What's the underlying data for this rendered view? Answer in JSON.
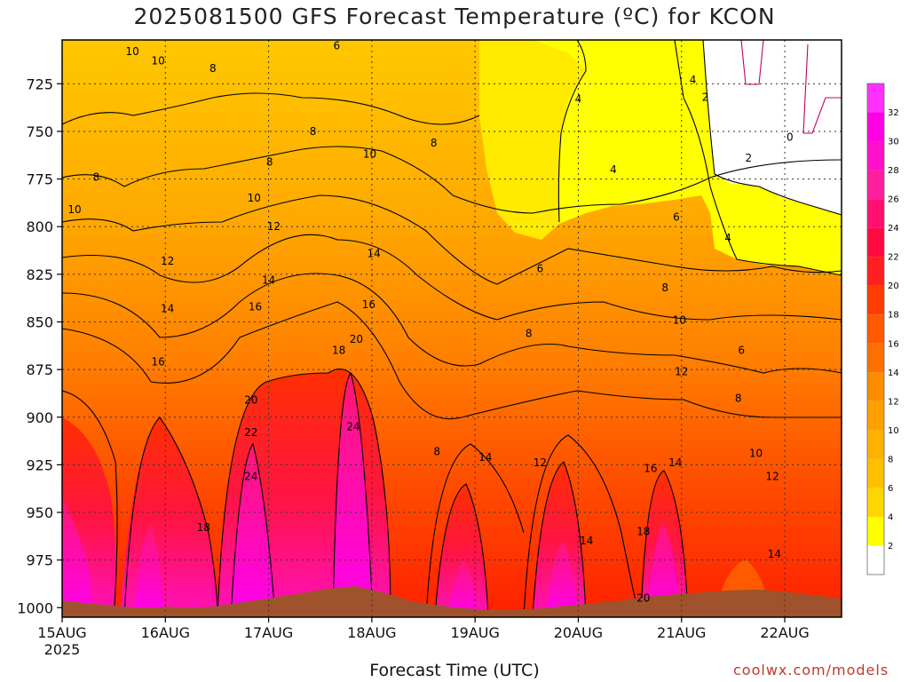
{
  "chart_data": {
    "type": "heatmap",
    "title": "2025081500 GFS Forecast Temperature (ºC) for KCON",
    "xlabel": "Forecast Time (UTC)",
    "ylabel": "",
    "x_ticks": [
      "15AUG",
      "16AUG",
      "17AUG",
      "18AUG",
      "19AUG",
      "20AUG",
      "21AUG",
      "22AUG"
    ],
    "x_tick_year": "2025",
    "x_range": [
      0,
      7.55
    ],
    "y_ticks": [
      725,
      750,
      775,
      800,
      825,
      850,
      875,
      900,
      925,
      950,
      975,
      1000
    ],
    "y_range": [
      1005,
      702
    ],
    "grid": true,
    "colorbar_levels": [
      2,
      4,
      6,
      8,
      10,
      12,
      14,
      16,
      18,
      20,
      22,
      24,
      26,
      28,
      30,
      32
    ],
    "colorbar_colors": [
      "#ffffff",
      "#ffff00",
      "#ffd700",
      "#ffc000",
      "#ffb000",
      "#ffa000",
      "#ff8c00",
      "#ff7000",
      "#ff5a00",
      "#ff3c00",
      "#ff1f1f",
      "#ff0a40",
      "#ff1070",
      "#ff20a0",
      "#ff10c8",
      "#ff00e6",
      "#ff30ff"
    ],
    "contour_labels": [
      {
        "x": 0.68,
        "p": 708,
        "v": "10"
      },
      {
        "x": 0.93,
        "p": 713,
        "v": "10"
      },
      {
        "x": 1.46,
        "p": 717,
        "v": "8"
      },
      {
        "x": 2.66,
        "p": 705,
        "v": "6"
      },
      {
        "x": 0.33,
        "p": 774,
        "v": "8"
      },
      {
        "x": 2.01,
        "p": 766,
        "v": "8"
      },
      {
        "x": 2.43,
        "p": 750,
        "v": "8"
      },
      {
        "x": 3.6,
        "p": 756,
        "v": "8"
      },
      {
        "x": 0.12,
        "p": 791,
        "v": "10"
      },
      {
        "x": 1.86,
        "p": 785,
        "v": "10"
      },
      {
        "x": 2.98,
        "p": 762,
        "v": "10"
      },
      {
        "x": 5.0,
        "p": 733,
        "v": "4"
      },
      {
        "x": 6.11,
        "p": 723,
        "v": "4"
      },
      {
        "x": 6.23,
        "p": 732,
        "v": "2"
      },
      {
        "x": 6.65,
        "p": 764,
        "v": "2"
      },
      {
        "x": 7.05,
        "p": 753,
        "v": "0"
      },
      {
        "x": 5.34,
        "p": 770,
        "v": "4"
      },
      {
        "x": 1.02,
        "p": 818,
        "v": "12"
      },
      {
        "x": 2.05,
        "p": 800,
        "v": "12"
      },
      {
        "x": 3.02,
        "p": 814,
        "v": "14"
      },
      {
        "x": 2.0,
        "p": 828,
        "v": "14"
      },
      {
        "x": 5.95,
        "p": 795,
        "v": "6"
      },
      {
        "x": 6.45,
        "p": 806,
        "v": "4"
      },
      {
        "x": 4.63,
        "p": 822,
        "v": "6"
      },
      {
        "x": 1.02,
        "p": 843,
        "v": "14"
      },
      {
        "x": 1.87,
        "p": 842,
        "v": "16"
      },
      {
        "x": 2.97,
        "p": 841,
        "v": "16"
      },
      {
        "x": 5.84,
        "p": 832,
        "v": "8"
      },
      {
        "x": 4.52,
        "p": 856,
        "v": "8"
      },
      {
        "x": 5.98,
        "p": 849,
        "v": "10"
      },
      {
        "x": 0.93,
        "p": 871,
        "v": "16"
      },
      {
        "x": 2.68,
        "p": 865,
        "v": "18"
      },
      {
        "x": 2.85,
        "p": 859,
        "v": "20"
      },
      {
        "x": 6.58,
        "p": 865,
        "v": "6"
      },
      {
        "x": 6.0,
        "p": 876,
        "v": "12"
      },
      {
        "x": 1.83,
        "p": 891,
        "v": "20"
      },
      {
        "x": 6.55,
        "p": 890,
        "v": "8"
      },
      {
        "x": 1.83,
        "p": 908,
        "v": "22"
      },
      {
        "x": 2.82,
        "p": 905,
        "v": "24"
      },
      {
        "x": 3.63,
        "p": 918,
        "v": "8"
      },
      {
        "x": 4.1,
        "p": 921,
        "v": "14"
      },
      {
        "x": 4.63,
        "p": 924,
        "v": "12"
      },
      {
        "x": 5.7,
        "p": 927,
        "v": "16"
      },
      {
        "x": 5.94,
        "p": 924,
        "v": "14"
      },
      {
        "x": 6.72,
        "p": 919,
        "v": "10"
      },
      {
        "x": 1.83,
        "p": 931,
        "v": "24"
      },
      {
        "x": 6.88,
        "p": 931,
        "v": "12"
      },
      {
        "x": 1.37,
        "p": 958,
        "v": "18"
      },
      {
        "x": 5.63,
        "p": 960,
        "v": "18"
      },
      {
        "x": 5.08,
        "p": 965,
        "v": "14"
      },
      {
        "x": 6.9,
        "p": 972,
        "v": "14"
      },
      {
        "x": 5.63,
        "p": 995,
        "v": "20"
      }
    ]
  }
}
